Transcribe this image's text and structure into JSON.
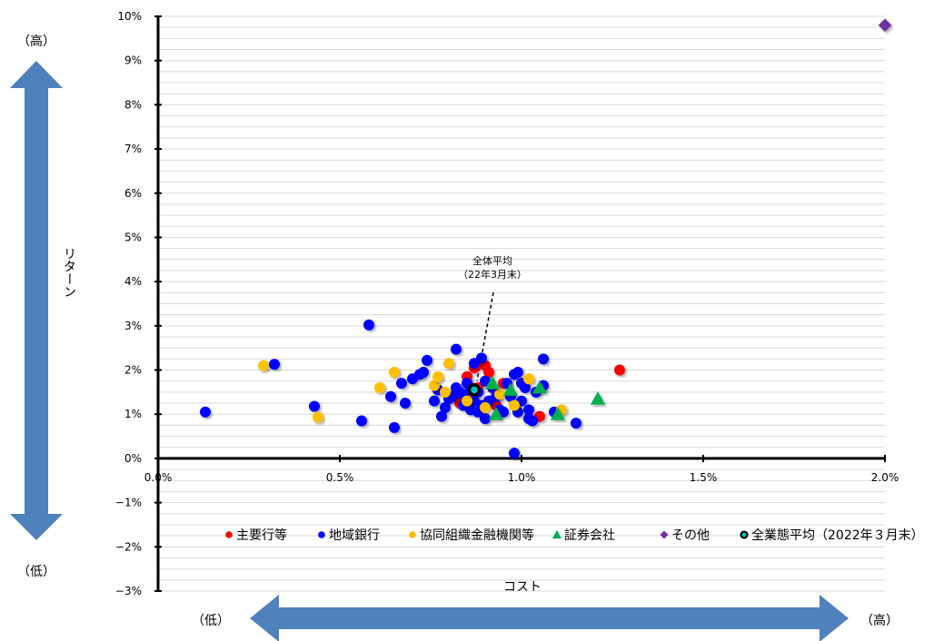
{
  "chart_data": {
    "type": "scatter",
    "title": "",
    "xlabel": "コスト",
    "ylabel": "リターン",
    "xlim": [
      0.0,
      2.0
    ],
    "ylim": [
      -3,
      10
    ],
    "x_ticks": [
      "0.0%",
      "0.5%",
      "1.0%",
      "1.5%",
      "2.0%"
    ],
    "y_ticks": [
      "10%",
      "9%",
      "8%",
      "7%",
      "6%",
      "5%",
      "4%",
      "3%",
      "2%",
      "1%",
      "0%",
      "−1%",
      "−2%",
      "−3%"
    ],
    "grid": true,
    "legend_position": "bottom",
    "axis_hints": {
      "y_high": "（高）",
      "y_low": "（低）",
      "x_low": "（低）",
      "x_high": "（高）"
    },
    "annotation": {
      "line1": "全体平均",
      "line2": "（22年3月末）"
    },
    "series": [
      {
        "name": "主要行等",
        "marker": "circle",
        "color": "#ff0000",
        "points": [
          [
            0.83,
            1.25
          ],
          [
            0.84,
            1.35
          ],
          [
            0.86,
            1.4
          ],
          [
            0.87,
            2.05
          ],
          [
            0.9,
            2.1
          ],
          [
            0.91,
            1.95
          ],
          [
            0.93,
            1.2
          ],
          [
            0.95,
            1.7
          ],
          [
            1.05,
            0.95
          ],
          [
            1.27,
            2.0
          ],
          [
            0.85,
            1.85
          ],
          [
            0.88,
            1.6
          ]
        ]
      },
      {
        "name": "地域銀行",
        "marker": "circle",
        "color": "#0000ff",
        "points": [
          [
            0.13,
            1.05
          ],
          [
            0.32,
            2.13
          ],
          [
            0.43,
            1.18
          ],
          [
            0.56,
            0.85
          ],
          [
            0.58,
            3.02
          ],
          [
            0.64,
            1.4
          ],
          [
            0.65,
            0.7
          ],
          [
            0.67,
            1.7
          ],
          [
            0.68,
            1.25
          ],
          [
            0.7,
            1.8
          ],
          [
            0.72,
            1.9
          ],
          [
            0.73,
            1.95
          ],
          [
            0.74,
            2.22
          ],
          [
            0.76,
            1.3
          ],
          [
            0.77,
            1.55
          ],
          [
            0.78,
            0.95
          ],
          [
            0.79,
            1.15
          ],
          [
            0.8,
            1.35
          ],
          [
            0.81,
            1.4
          ],
          [
            0.82,
            1.6
          ],
          [
            0.82,
            2.47
          ],
          [
            0.83,
            1.5
          ],
          [
            0.84,
            1.2
          ],
          [
            0.85,
            1.7
          ],
          [
            0.86,
            1.1
          ],
          [
            0.87,
            1.3
          ],
          [
            0.87,
            2.15
          ],
          [
            0.88,
            1.05
          ],
          [
            0.88,
            1.5
          ],
          [
            0.89,
            1.2
          ],
          [
            0.89,
            2.27
          ],
          [
            0.9,
            0.9
          ],
          [
            0.9,
            1.75
          ],
          [
            0.91,
            1.3
          ],
          [
            0.92,
            1.6
          ],
          [
            0.93,
            1.4
          ],
          [
            0.94,
            1.1
          ],
          [
            0.95,
            1.05
          ],
          [
            0.96,
            1.7
          ],
          [
            0.97,
            1.4
          ],
          [
            0.98,
            1.9
          ],
          [
            0.99,
            1.05
          ],
          [
            0.99,
            1.95
          ],
          [
            1.0,
            1.3
          ],
          [
            1.0,
            1.7
          ],
          [
            1.01,
            1.6
          ],
          [
            1.02,
            1.1
          ],
          [
            1.02,
            0.9
          ],
          [
            1.03,
            0.85
          ],
          [
            1.04,
            1.5
          ],
          [
            1.06,
            2.25
          ],
          [
            1.06,
            1.65
          ],
          [
            1.09,
            1.05
          ],
          [
            1.15,
            0.8
          ],
          [
            0.98,
            0.12
          ],
          [
            0.86,
            1.6
          ],
          [
            0.84,
            1.45
          ]
        ]
      },
      {
        "name": "協同組織金融機関等",
        "marker": "circle",
        "color": "#ffc000",
        "points": [
          [
            0.29,
            2.1
          ],
          [
            0.44,
            0.93
          ],
          [
            0.61,
            1.6
          ],
          [
            0.65,
            1.95
          ],
          [
            0.76,
            1.65
          ],
          [
            0.77,
            1.85
          ],
          [
            0.79,
            1.5
          ],
          [
            0.8,
            2.15
          ],
          [
            0.85,
            1.3
          ],
          [
            0.9,
            1.15
          ],
          [
            0.94,
            1.45
          ],
          [
            0.98,
            1.2
          ],
          [
            1.02,
            1.8
          ],
          [
            1.11,
            1.1
          ]
        ]
      },
      {
        "name": "証券会社",
        "marker": "triangle",
        "color": "#00b050",
        "points": [
          [
            0.92,
            1.7
          ],
          [
            0.93,
            1.0
          ],
          [
            0.97,
            1.55
          ],
          [
            1.05,
            1.6
          ],
          [
            1.1,
            1.0
          ],
          [
            1.21,
            1.35
          ]
        ]
      },
      {
        "name": "その他",
        "marker": "diamond",
        "color": "#7030a0",
        "points": [
          [
            2.0,
            9.8
          ]
        ]
      },
      {
        "name": "全業態平均（2022年３月末）",
        "marker": "ring",
        "color": "#00c0c0",
        "points": [
          [
            0.87,
            1.55
          ]
        ]
      }
    ]
  },
  "colors": {
    "arrow": "#4f81bd",
    "grid": "#d9d9d9",
    "axis": "#000000"
  }
}
